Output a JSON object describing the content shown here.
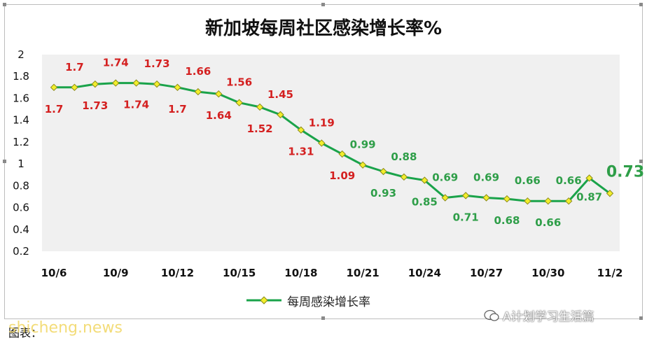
{
  "chart_data": {
    "type": "line",
    "title": "新加坡每周社区感染增长率%",
    "legend": {
      "label": "每周感染增长率",
      "position": "bottom"
    },
    "y_ticks": [
      "2",
      "1.8",
      "1.6",
      "1.4",
      "1.2",
      "1",
      "0.8",
      "0.6",
      "0.4",
      "0.2"
    ],
    "ylim": [
      0.2,
      2
    ],
    "x_tick_labels": [
      "10/6",
      "10/9",
      "10/12",
      "10/15",
      "10/18",
      "10/21",
      "10/24",
      "10/27",
      "10/30",
      "11/2"
    ],
    "x": [
      "10/6",
      "10/7",
      "10/8",
      "10/9",
      "10/10",
      "10/11",
      "10/12",
      "10/13",
      "10/14",
      "10/15",
      "10/16",
      "10/17",
      "10/18",
      "10/19",
      "10/20",
      "10/21",
      "10/22",
      "10/23",
      "10/24",
      "10/25",
      "10/26",
      "10/27",
      "10/28",
      "10/29",
      "10/30",
      "10/31",
      "11/1",
      "11/2"
    ],
    "series": [
      {
        "values": [
          1.7,
          1.7,
          1.73,
          1.74,
          1.74,
          1.73,
          1.7,
          1.66,
          1.64,
          1.56,
          1.52,
          1.45,
          1.31,
          1.19,
          1.09,
          0.99,
          0.93,
          0.88,
          0.85,
          0.69,
          0.71,
          0.69,
          0.68,
          0.66,
          0.66,
          0.66,
          0.87,
          0.73
        ],
        "labels": [
          "1.7",
          "1.7",
          "1.73",
          "1.74",
          "1.74",
          "1.73",
          "1.7",
          "1.66",
          "1.64",
          "1.56",
          "1.52",
          "1.45",
          "1.31",
          "1.19",
          "1.09",
          "0.99",
          "0.93",
          "0.88",
          "0.85",
          "0.69",
          "0.71",
          "0.69",
          "0.68",
          "0.66",
          "0.66",
          "0.66",
          "0.87",
          "0.73"
        ]
      }
    ],
    "grid": false,
    "colors": {
      "line": "#1aa34a",
      "marker_fill": "#f2ee2c",
      "marker_stroke": "#8a8a1a",
      "label_high": "#d42020",
      "label_low": "#2e9e48",
      "plot_bg": "#f0f0f0"
    }
  },
  "footer": {
    "source_text": "图表：",
    "watermark_wechat": "A计划学习生活篇",
    "watermark_site": "shicheng.news"
  }
}
